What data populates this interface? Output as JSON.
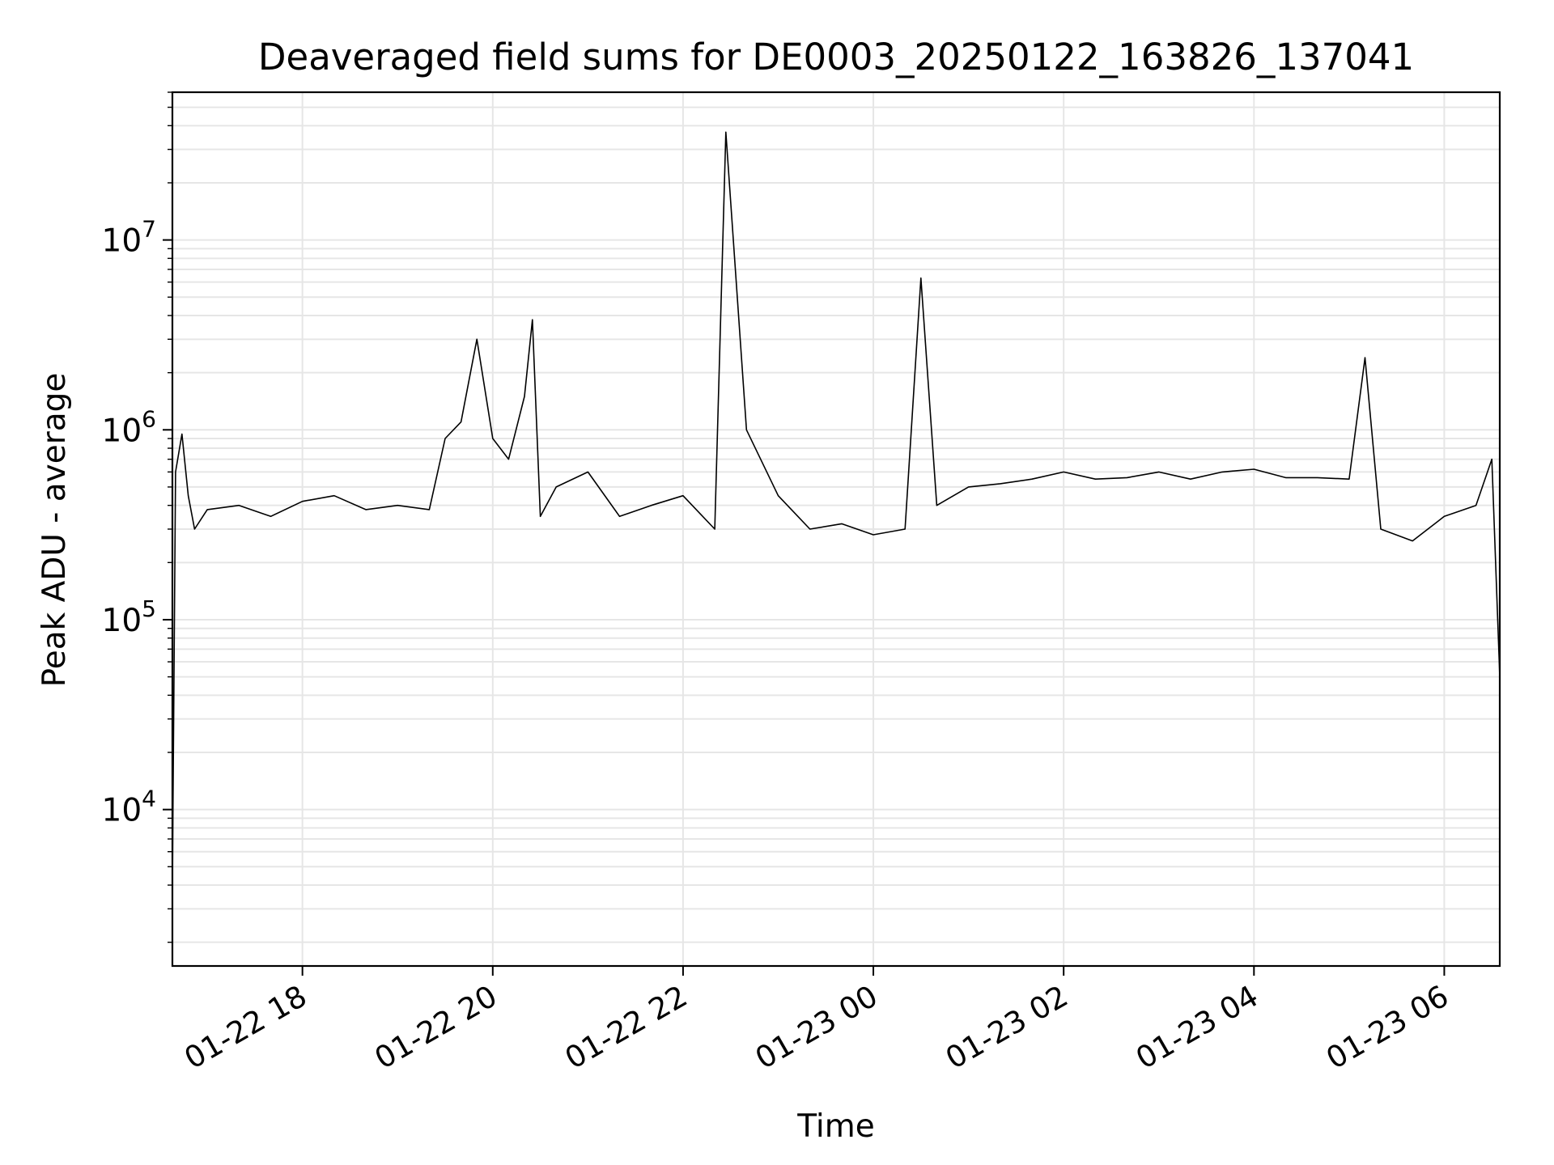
{
  "chart_data": {
    "type": "line",
    "title": "Deaveraged field sums for DE0003_20250122_163826_137041",
    "xlabel": "Time",
    "ylabel": "Peak ADU - average",
    "yscale": "log",
    "xlim": [
      "2025-01-22 16:38",
      "2025-01-23 06:35"
    ],
    "ylim": [
      1500,
      60000000
    ],
    "grid": true,
    "x_ticks": [
      {
        "value": "2025-01-22 18:00",
        "label": "01-22 18"
      },
      {
        "value": "2025-01-22 20:00",
        "label": "01-22 20"
      },
      {
        "value": "2025-01-22 22:00",
        "label": "01-22 22"
      },
      {
        "value": "2025-01-23 00:00",
        "label": "01-23 00"
      },
      {
        "value": "2025-01-23 02:00",
        "label": "01-23 02"
      },
      {
        "value": "2025-01-23 04:00",
        "label": "01-23 04"
      },
      {
        "value": "2025-01-23 06:00",
        "label": "01-23 06"
      }
    ],
    "y_ticks": [
      {
        "value": 10000,
        "base": "10",
        "exp": "4"
      },
      {
        "value": 100000,
        "base": "10",
        "exp": "5"
      },
      {
        "value": 1000000,
        "base": "10",
        "exp": "6"
      },
      {
        "value": 10000000,
        "base": "10",
        "exp": "7"
      }
    ],
    "line_color": "#000000",
    "series": [
      {
        "x": [
          "2025-01-22 16:38",
          "2025-01-22 16:40",
          "2025-01-22 16:44",
          "2025-01-22 16:48",
          "2025-01-22 16:52",
          "2025-01-22 17:00",
          "2025-01-22 17:20",
          "2025-01-22 17:40",
          "2025-01-22 18:00",
          "2025-01-22 18:20",
          "2025-01-22 18:40",
          "2025-01-22 19:00",
          "2025-01-22 19:20",
          "2025-01-22 19:30",
          "2025-01-22 19:40",
          "2025-01-22 19:50",
          "2025-01-22 20:00",
          "2025-01-22 20:10",
          "2025-01-22 20:20",
          "2025-01-22 20:25",
          "2025-01-22 20:30",
          "2025-01-22 20:40",
          "2025-01-22 21:00",
          "2025-01-22 21:20",
          "2025-01-22 21:40",
          "2025-01-22 22:00",
          "2025-01-22 22:20",
          "2025-01-22 22:27",
          "2025-01-22 22:40",
          "2025-01-22 23:00",
          "2025-01-22 23:20",
          "2025-01-22 23:40",
          "2025-01-23 00:00",
          "2025-01-23 00:20",
          "2025-01-23 00:30",
          "2025-01-23 00:40",
          "2025-01-23 01:00",
          "2025-01-23 01:20",
          "2025-01-23 01:40",
          "2025-01-23 02:00",
          "2025-01-23 02:20",
          "2025-01-23 02:40",
          "2025-01-23 03:00",
          "2025-01-23 03:20",
          "2025-01-23 03:40",
          "2025-01-23 04:00",
          "2025-01-23 04:20",
          "2025-01-23 04:40",
          "2025-01-23 05:00",
          "2025-01-23 05:10",
          "2025-01-23 05:20",
          "2025-01-23 05:40",
          "2025-01-23 06:00",
          "2025-01-23 06:20",
          "2025-01-23 06:30",
          "2025-01-23 06:35"
        ],
        "y": [
          4000,
          600000,
          950000,
          450000,
          300000,
          380000,
          400000,
          350000,
          420000,
          450000,
          380000,
          400000,
          380000,
          900000,
          1100000,
          3000000,
          900000,
          700000,
          1500000,
          3800000,
          350000,
          500000,
          600000,
          350000,
          400000,
          450000,
          300000,
          37000000,
          1000000,
          450000,
          300000,
          320000,
          280000,
          300000,
          6300000,
          400000,
          500000,
          520000,
          550000,
          600000,
          550000,
          560000,
          600000,
          550000,
          600000,
          620000,
          560000,
          560000,
          550000,
          2400000,
          300000,
          260000,
          350000,
          400000,
          700000,
          50000
        ]
      }
    ]
  }
}
